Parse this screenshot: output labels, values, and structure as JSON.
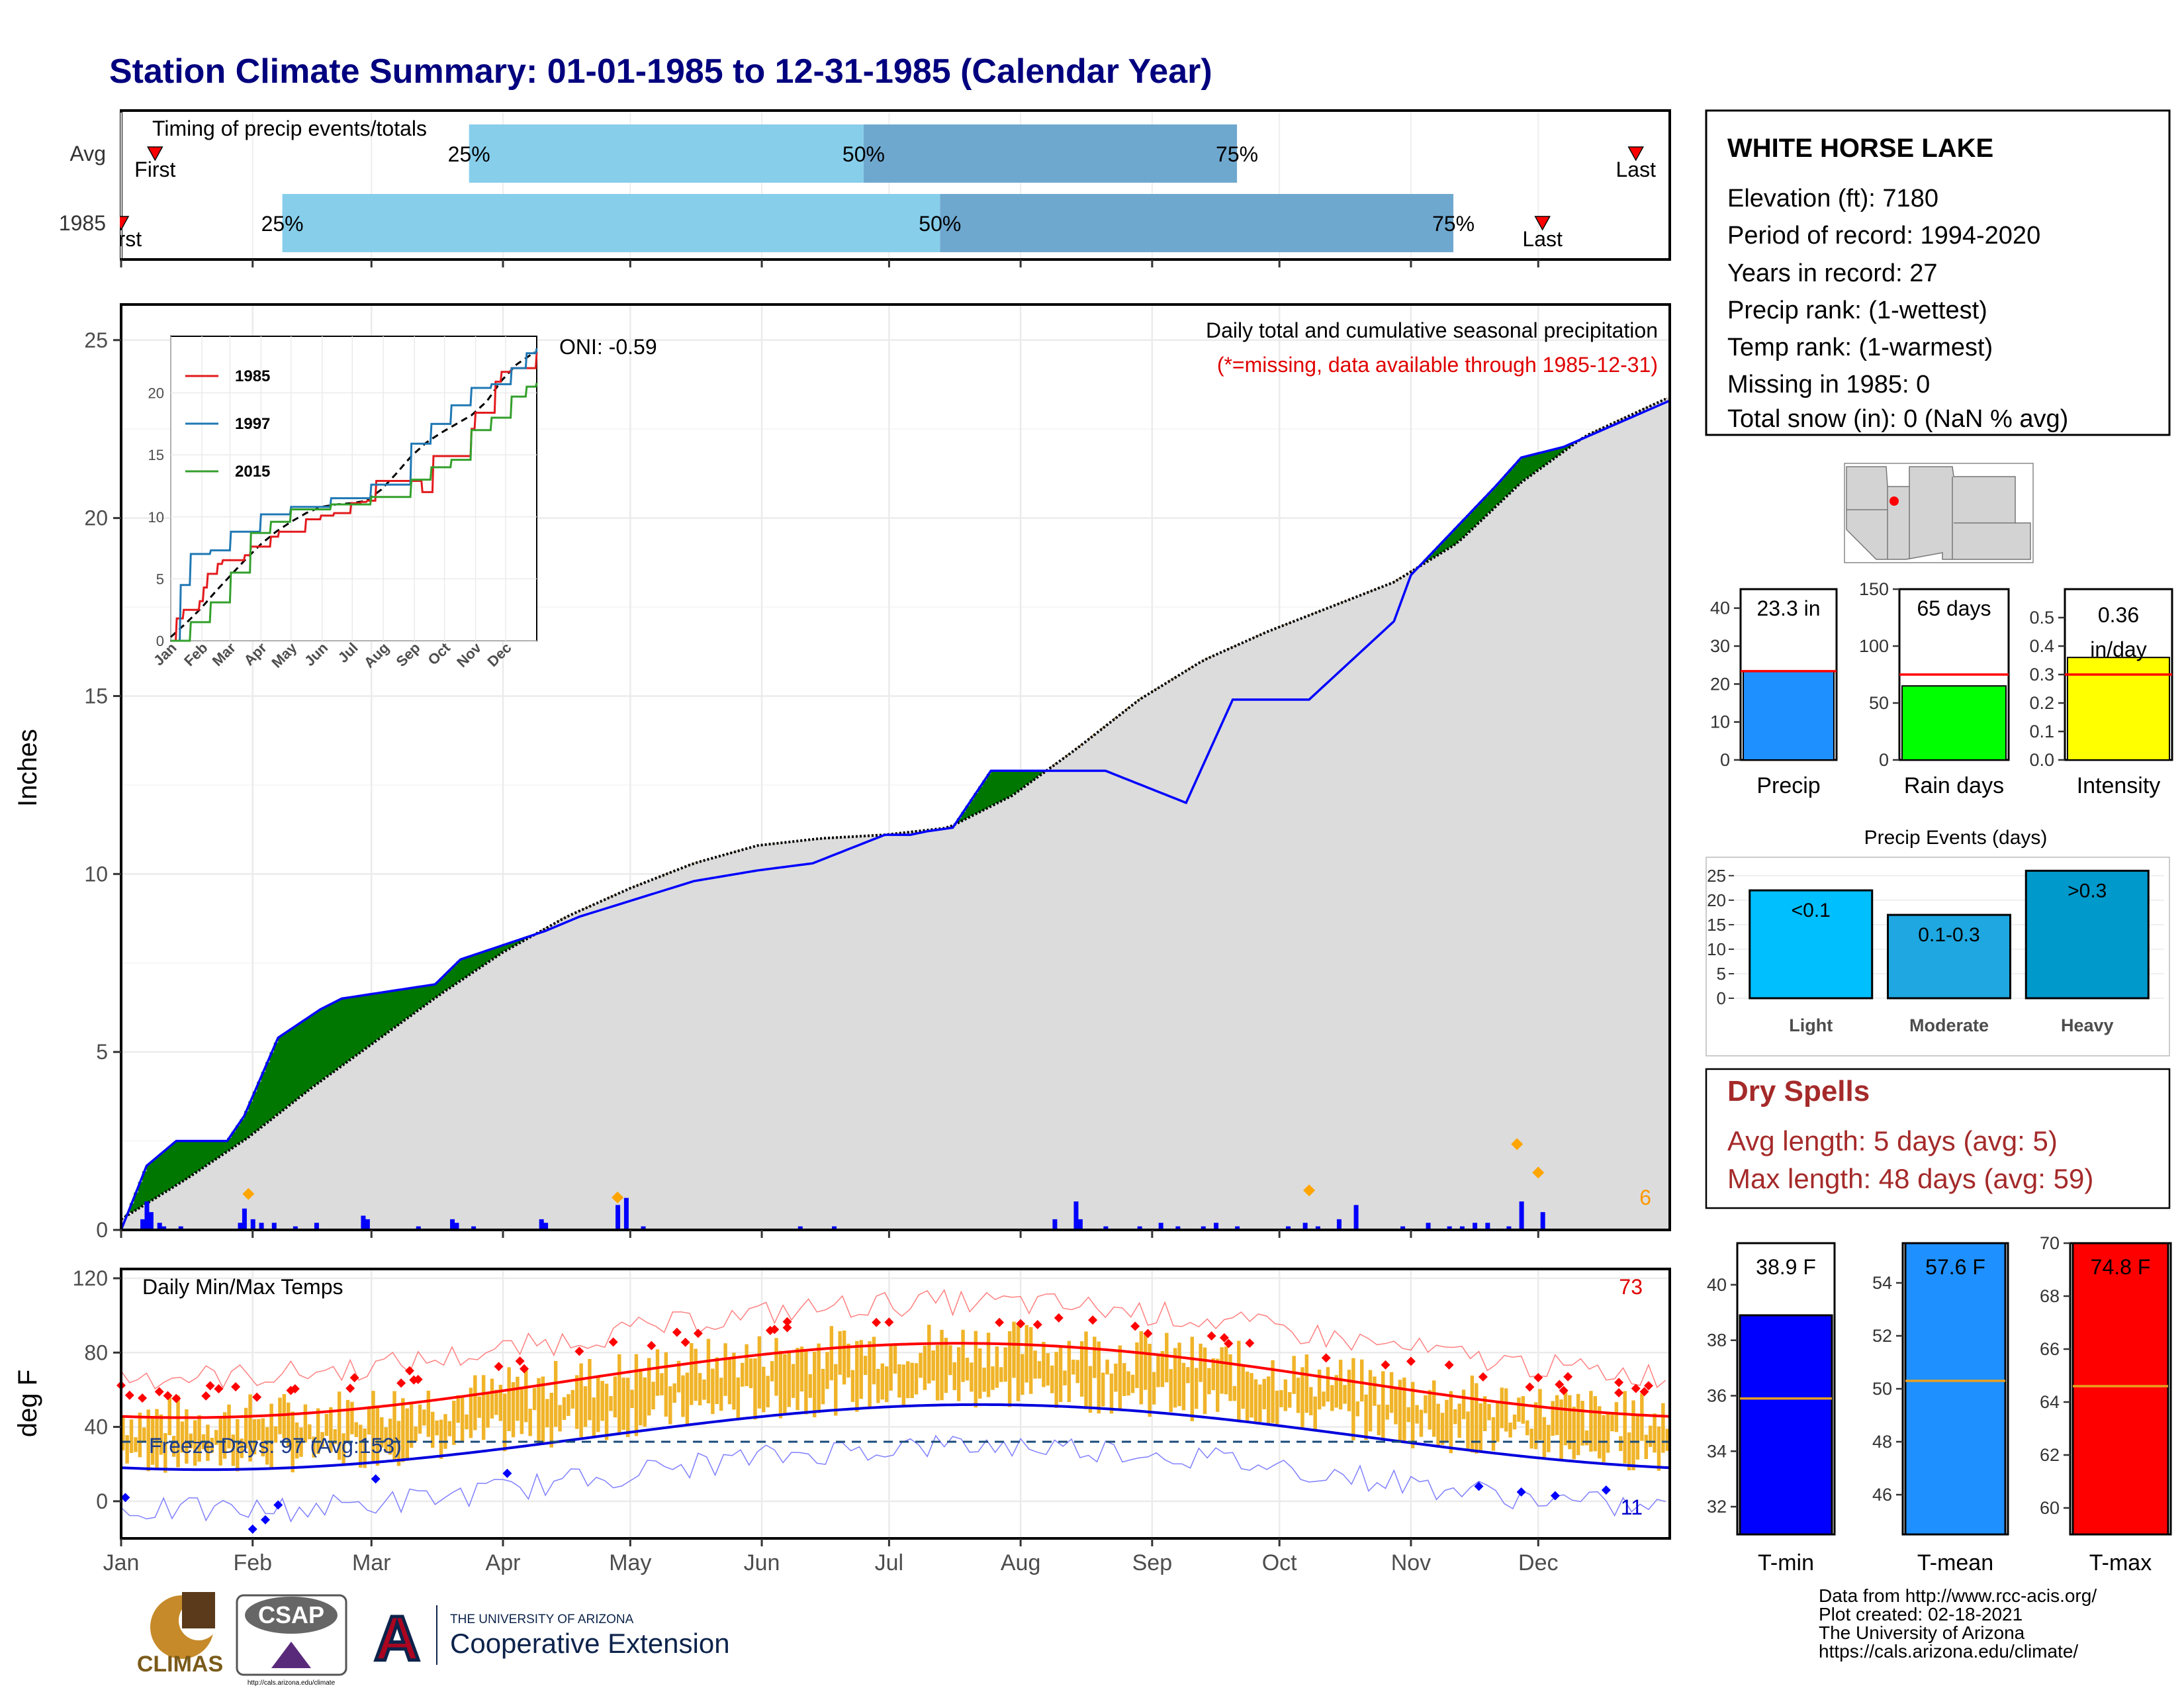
{
  "title": "Station Climate Summary: 01-01-1985 to 12-31-1985 (Calendar Year)",
  "colors": {
    "title": "#00007f",
    "precip_blue": "#0000ff",
    "wet": "#007700",
    "dry": "#7f5200",
    "cum_avg": "#dcdcdc",
    "dryspell": "#a52a2a",
    "tmax": "#ff0000",
    "tmin": "#0000ff",
    "bars": "#f0b429"
  },
  "timing": {
    "title": "Timing of precip events/totals",
    "rows": [
      {
        "label": "Avg",
        "first_label": "First",
        "last_label": "Last",
        "p25_label": "25%",
        "p50_label": "50%",
        "p75_label": "75%",
        "first_doy": 8,
        "p25_doy": 82,
        "p50_doy": 175,
        "p75_doy": 263,
        "last_doy": 357
      },
      {
        "label": "1985",
        "first_label": "First",
        "last_label": "Last",
        "p25_label": "25%",
        "p50_label": "50%",
        "p75_label": "75%",
        "first_doy": 0,
        "p25_doy": 38,
        "p50_doy": 193,
        "p75_doy": 314,
        "last_doy": 335
      }
    ]
  },
  "months": [
    "Jan",
    "Feb",
    "Mar",
    "Apr",
    "May",
    "Jun",
    "Jul",
    "Aug",
    "Sep",
    "Oct",
    "Nov",
    "Dec"
  ],
  "precip_panel": {
    "ylabel": "Inches",
    "yticks": [
      0,
      5,
      10,
      15,
      20,
      25
    ],
    "ylim": [
      0,
      26
    ],
    "oni": "ONI: -0.59",
    "header": "Daily total and cumulative seasonal precipitation",
    "missing_note": "(*=missing, data available through 1985-12-31)",
    "corner_value": "6"
  },
  "inset": {
    "yticks": [
      0,
      5,
      10,
      15,
      20
    ],
    "months": [
      "Jan",
      "Feb",
      "Mar",
      "Apr",
      "May",
      "Jun",
      "Jul",
      "Aug",
      "Sep",
      "Oct",
      "Nov",
      "Dec"
    ],
    "legend": [
      "1985",
      "1997",
      "2015"
    ]
  },
  "temp_panel": {
    "ylabel": "deg F",
    "yticks": [
      0,
      40,
      80,
      120
    ],
    "label": "Daily Min/Max Temps",
    "freeze_label": "Freeze Days: 97 (Avg:153)",
    "max_count": "73",
    "min_count": "11"
  },
  "station": {
    "name": "WHITE HORSE LAKE",
    "lines": [
      "Elevation (ft): 7180",
      "Period of record: 1994-2020",
      "Years in record: 27",
      "Precip rank:  (1-wettest)",
      "Temp rank:  (1-warmest)",
      "Missing in 1985: 0",
      "Total snow (in): 0 (NaN % avg)"
    ]
  },
  "mini_bars": [
    {
      "name": "Precip",
      "value_label": "23.3 in",
      "yticks": [
        "0",
        "10",
        "20",
        "30",
        "40"
      ],
      "ymax": 45,
      "value": 23.3,
      "avg": 23.4,
      "color": "#1e90ff"
    },
    {
      "name": "Rain days",
      "value_label": "65 days",
      "yticks": [
        "0",
        "50",
        "100",
        "150"
      ],
      "ymax": 150,
      "value": 65,
      "avg": 75,
      "color": "#00ff00"
    },
    {
      "name": "Intensity",
      "value_label": "0.36 in/day",
      "yticks": [
        "0.0",
        "0.1",
        "0.2",
        "0.3",
        "0.4",
        "0.5"
      ],
      "ymax": 0.6,
      "value": 0.36,
      "avg": 0.3,
      "color": "#ffff00"
    }
  ],
  "events": {
    "title": "Precip Events (days)",
    "yticks": [
      "0",
      "5",
      "10",
      "15",
      "20",
      "25"
    ],
    "bars": [
      {
        "name": "Light",
        "range": "<0.1",
        "value": 22,
        "color": "#00bfff"
      },
      {
        "name": "Moderate",
        "range": "0.1-0.3",
        "value": 17,
        "color": "#1ea7e0"
      },
      {
        "name": "Heavy",
        "range": ">0.3",
        "value": 26,
        "color": "#0099cc"
      }
    ]
  },
  "dry_spells": {
    "title": "Dry Spells",
    "avg": "Avg length: 5 days (avg: 5)",
    "max": "Max length: 48 days (avg: 59)"
  },
  "temp_bars": [
    {
      "name": "T-min",
      "value_label": "38.9 F",
      "yticks": [
        "32",
        "34",
        "36",
        "38",
        "40"
      ],
      "ymin": 31,
      "ymax": 41.5,
      "value": 38.9,
      "avg": 35.9,
      "color": "#0000ff"
    },
    {
      "name": "T-mean",
      "value_label": "57.6 F",
      "yticks": [
        "46",
        "48",
        "50",
        "52",
        "54"
      ],
      "ymin": 44.5,
      "ymax": 55.5,
      "value": 57.6,
      "avg": 50.3,
      "color": "#1e90ff"
    },
    {
      "name": "T-max",
      "value_label": "74.8 F",
      "yticks": [
        "60",
        "62",
        "64",
        "66",
        "68",
        "70"
      ],
      "ymin": 59,
      "ymax": 70,
      "value": 74.8,
      "avg": 64.6,
      "color": "#ff0000"
    }
  ],
  "credits": [
    "Data from http://www.rcc-acis.org/",
    "Plot created: 02-18-2021",
    "The University of Arizona",
    "https://cals.arizona.edu/climate/"
  ],
  "logos": {
    "climas": "CLIMAS",
    "csap": "CSAP",
    "csap_url": "http://cals.arizona.edu/climate",
    "ua_small": "THE UNIVERSITY OF ARIZONA",
    "ua_big": "Cooperative Extension"
  },
  "chart_data": {
    "type": "area",
    "title": "Station Climate Summary: 01-01-1985 to 12-31-1985 (Calendar Year)",
    "ylabel": "Inches",
    "ylim": [
      0,
      26
    ],
    "cumulative_1985": {
      "doy": [
        0,
        6,
        13,
        25,
        29,
        33,
        37,
        47,
        52,
        74,
        80,
        100,
        108,
        135,
        150,
        163,
        180,
        186,
        190,
        196,
        205,
        232,
        251,
        262,
        280,
        300,
        304,
        324,
        330,
        340,
        365
      ],
      "in": [
        0,
        1.8,
        2.5,
        2.5,
        3.2,
        4.3,
        5.4,
        6.2,
        6.5,
        6.9,
        7.6,
        8.4,
        8.8,
        9.8,
        10.1,
        10.3,
        11.1,
        11.1,
        11.2,
        11.3,
        12.9,
        12.9,
        12.0,
        14.9,
        14.9,
        17.1,
        18.4,
        20.9,
        21.7,
        22.0,
        23.3
      ]
    },
    "cumulative_avg": {
      "doy": [
        0,
        15,
        30,
        45,
        60,
        75,
        90,
        105,
        120,
        135,
        150,
        165,
        180,
        195,
        210,
        225,
        240,
        255,
        270,
        285,
        300,
        315,
        330,
        345,
        365
      ],
      "in": [
        0.3,
        1.4,
        2.6,
        4.0,
        5.3,
        6.6,
        7.8,
        8.8,
        9.6,
        10.3,
        10.8,
        11.0,
        11.1,
        11.3,
        12.2,
        13.5,
        14.9,
        16.0,
        16.8,
        17.5,
        18.2,
        19.3,
        21.0,
        22.3,
        23.4
      ]
    },
    "daily_precip": {
      "doy": [
        5,
        6,
        7,
        9,
        10,
        14,
        28,
        29,
        31,
        33,
        36,
        41,
        46,
        57,
        58,
        70,
        78,
        79,
        83,
        99,
        100,
        117,
        119,
        123,
        160,
        168,
        220,
        225,
        226,
        232,
        240,
        245,
        249,
        255,
        258,
        263,
        275,
        279,
        282,
        287,
        291,
        302,
        308,
        313,
        316,
        319,
        322,
        327,
        330,
        335
      ],
      "in": [
        0.3,
        0.8,
        0.5,
        0.2,
        0.1,
        0.1,
        0.2,
        0.6,
        0.3,
        0.2,
        0.2,
        0.1,
        0.2,
        0.4,
        0.3,
        0.1,
        0.3,
        0.2,
        0.1,
        0.3,
        0.2,
        0.7,
        0.9,
        0.1,
        0.1,
        0.1,
        0.3,
        0.8,
        0.3,
        0.1,
        0.1,
        0.2,
        0.1,
        0.1,
        0.2,
        0.1,
        0.1,
        0.2,
        0.1,
        0.3,
        0.7,
        0.1,
        0.2,
        0.1,
        0.1,
        0.2,
        0.2,
        0.1,
        0.8,
        0.5
      ]
    },
    "temperature": {
      "tmax_normal_range": [
        45,
        85
      ],
      "tmin_normal_range": [
        17,
        52
      ],
      "ylim": [
        -20,
        125
      ]
    }
  }
}
